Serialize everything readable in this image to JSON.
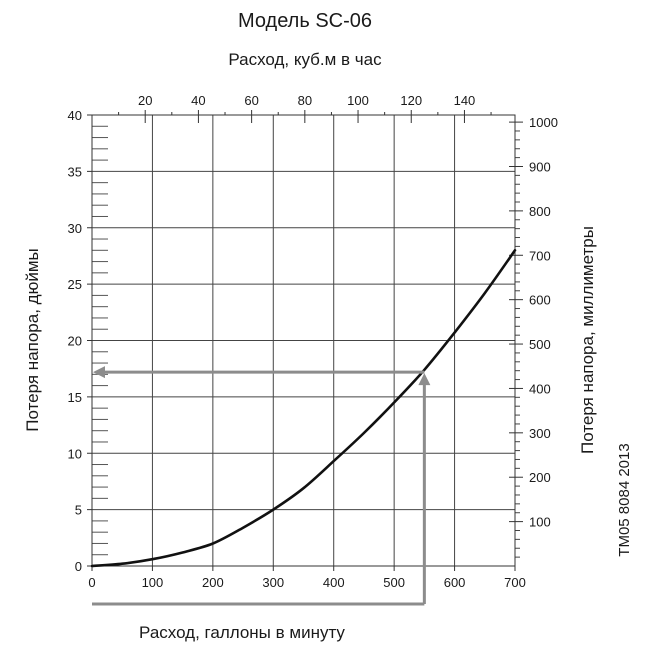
{
  "chart_data": {
    "type": "line",
    "title": "Модель SC-06",
    "xlabel": "Расход, галлоны в минуту",
    "xlabel_top": "Расход, куб.м в час",
    "ylabel": "Потеря напора, дюймы",
    "ylabel_right": "Потеря напора, миллиметры",
    "xlim": [
      0,
      700
    ],
    "ylim": [
      0,
      40
    ],
    "x_top_lim": [
      0,
      159
    ],
    "y_right_lim": [
      0,
      1016
    ],
    "x_ticks": [
      "0",
      "100",
      "200",
      "300",
      "400",
      "500",
      "600",
      "700"
    ],
    "y_ticks": [
      "0",
      "5",
      "10",
      "15",
      "20",
      "25",
      "30",
      "35",
      "40"
    ],
    "x_top_ticks": [
      "20",
      "40",
      "60",
      "80",
      "100",
      "120",
      "140"
    ],
    "y_right_ticks": [
      "100",
      "200",
      "300",
      "400",
      "500",
      "600",
      "700",
      "800",
      "900",
      "1000"
    ],
    "grid": true,
    "series": [
      {
        "x": [
          0,
          50,
          100,
          150,
          200,
          250,
          300,
          350,
          400,
          450,
          500,
          550,
          600,
          650,
          700
        ],
        "y": [
          0,
          0.2,
          0.6,
          1.2,
          2.0,
          3.4,
          5.0,
          6.9,
          9.3,
          11.8,
          14.5,
          17.4,
          20.7,
          24.2,
          28.0
        ],
        "color": "#111111"
      }
    ],
    "annotation": {
      "x": 550,
      "y": 17.2,
      "color": "#8c8c8c"
    },
    "source_code": "TM05 8084 2013"
  }
}
